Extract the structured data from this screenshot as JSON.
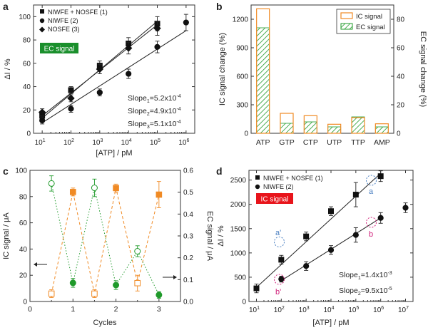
{
  "colors": {
    "orange": "#f08a24",
    "green": "#1f9a2a",
    "red_box": "#e8141b",
    "green_box": "#1a8f2c",
    "blue_letter": "#4a7fc1",
    "magenta_letter": "#d0207a",
    "axis": "#333333"
  },
  "chart_data": [
    {
      "panel": "a",
      "type": "scatter",
      "xscale": "log",
      "xlim": [
        5,
        2000000
      ],
      "ylim": [
        0,
        110
      ],
      "xticks": [
        10,
        100,
        1000,
        10000,
        100000,
        1000000
      ],
      "xtick_labels": [
        [
          "10",
          "1"
        ],
        [
          "10",
          "2"
        ],
        [
          "10",
          "3"
        ],
        [
          "10",
          "4"
        ],
        [
          "10",
          "5"
        ],
        [
          "10",
          "6"
        ]
      ],
      "yticks": [
        0,
        20,
        40,
        60,
        80,
        100
      ],
      "xlabel": "[ATP] / pM",
      "ylabel": "ΔI / %",
      "badge": "EC signal",
      "legend": [
        "NIWFE + NOSFE (1)",
        "NIWFE (2)",
        "NOSFE (3)"
      ],
      "series": [
        {
          "name": "NIWFE + NOSFE (1)",
          "marker": "square",
          "x": [
            10,
            100,
            1000,
            10000,
            100000
          ],
          "y": [
            15,
            37,
            58,
            77,
            94
          ],
          "err": [
            3,
            3,
            4,
            5,
            6
          ]
        },
        {
          "name": "NIWFE (2)",
          "marker": "circle",
          "x": [
            10,
            100,
            1000,
            10000,
            100000,
            1000000
          ],
          "y": [
            11,
            21,
            35,
            51,
            74,
            95
          ],
          "err": [
            3,
            3,
            3,
            4,
            5,
            7
          ]
        },
        {
          "name": "NOSFE (3)",
          "marker": "diamond",
          "x": [
            10,
            100,
            1000,
            10000,
            100000
          ],
          "y": [
            18,
            30,
            55,
            73,
            90
          ],
          "err": [
            3,
            3,
            4,
            5,
            6
          ]
        }
      ],
      "fits": [
        {
          "x": [
            10,
            100000
          ],
          "y": [
            13,
            96
          ]
        },
        {
          "x": [
            10,
            1000000
          ],
          "y": [
            9,
            88
          ]
        },
        {
          "x": [
            10,
            100000
          ],
          "y": [
            15,
            93
          ]
        }
      ],
      "slopes": [
        {
          "label": "Slope",
          "sub": "1",
          "value": "=5.2x10",
          "exp": "-4"
        },
        {
          "label": "Slope",
          "sub": "2",
          "value": "=4.9x10",
          "exp": "-4"
        },
        {
          "label": "Slope",
          "sub": "3",
          "value": "=5.1x10",
          "exp": "-4"
        }
      ]
    },
    {
      "panel": "b",
      "type": "bar",
      "categories": [
        "ATP",
        "GTP",
        "CTP",
        "UTP",
        "TTP",
        "AMP"
      ],
      "series": [
        {
          "name": "IC signal",
          "values": [
            1310,
            210,
            185,
            95,
            165,
            100
          ]
        },
        {
          "name": "EC signal",
          "values": [
            74,
            7,
            8,
            4.5,
            11.5,
            4.5
          ]
        }
      ],
      "ylim_left": [
        0,
        1350
      ],
      "yticks_left": [
        0,
        300,
        600,
        900,
        1200
      ],
      "ylim_right": [
        0,
        90
      ],
      "yticks_right": [
        0,
        20,
        40,
        60,
        80
      ],
      "ylabel_left": "IC signal change (%)",
      "ylabel_right": "EC signal change (%)",
      "legend": [
        "IC signal",
        "EC signal"
      ]
    },
    {
      "panel": "c",
      "type": "line",
      "xlim": [
        0,
        3.5
      ],
      "xticks": [
        0,
        1,
        2,
        3
      ],
      "ylim_left": [
        0,
        100
      ],
      "yticks_left": [
        0,
        20,
        40,
        60,
        80,
        100
      ],
      "ylim_right": [
        0,
        0.6
      ],
      "yticks_right": [
        0.0,
        0.1,
        0.2,
        0.3,
        0.4,
        0.5,
        0.6
      ],
      "xlabel": "Cycles",
      "ylabel_left": "IC signal / μA",
      "ylabel_right": "EC signal / μA",
      "series": [
        {
          "axis": "left",
          "x": [
            0.5,
            1,
            1.5,
            2,
            2.5,
            3
          ],
          "y": [
            6,
            83.5,
            6,
            86.5,
            14,
            81.5
          ],
          "err": [
            3,
            3,
            3,
            3,
            6,
            10
          ],
          "filled": [
            false,
            true,
            false,
            true,
            false,
            true
          ]
        },
        {
          "axis": "right",
          "x": [
            0.5,
            1,
            1.5,
            2,
            2.5,
            3
          ],
          "y": [
            0.54,
            0.085,
            0.52,
            0.075,
            0.23,
            0.03
          ],
          "err": [
            0.035,
            0.02,
            0.04,
            0.02,
            0.025,
            0.015
          ],
          "filled": [
            false,
            true,
            false,
            true,
            false,
            true
          ]
        }
      ]
    },
    {
      "panel": "d",
      "type": "scatter",
      "xscale": "log",
      "xlim": [
        5,
        20000000
      ],
      "ylim": [
        0,
        2700
      ],
      "xticks": [
        10,
        100,
        1000,
        10000,
        100000,
        1000000,
        10000000
      ],
      "xtick_labels": [
        [
          "10",
          "1"
        ],
        [
          "10",
          "2"
        ],
        [
          "10",
          "3"
        ],
        [
          "10",
          "4"
        ],
        [
          "10",
          "5"
        ],
        [
          "10",
          "6"
        ],
        [
          "10",
          "7"
        ]
      ],
      "yticks": [
        0,
        500,
        1000,
        1500,
        2000,
        2500
      ],
      "xlabel": "[ATP] / pM",
      "ylabel": "ΔI / %",
      "badge": "IC signal",
      "legend": [
        "NIWFE + NOSFE (1)",
        "NIWFE (2)"
      ],
      "series": [
        {
          "name": "NIWFE + NOSFE (1)",
          "marker": "square",
          "x": [
            10,
            100,
            1000,
            10000,
            100000,
            1000000
          ],
          "y": [
            270,
            860,
            1340,
            1860,
            2200,
            2580
          ],
          "err": [
            90,
            90,
            90,
            90,
            250,
            110
          ]
        },
        {
          "name": "NIWFE (2)",
          "marker": "circle",
          "x": [
            100,
            1000,
            10000,
            100000,
            1000000,
            10000000
          ],
          "y": [
            460,
            730,
            1060,
            1370,
            1720,
            1930
          ],
          "err": [
            60,
            90,
            90,
            150,
            110,
            100
          ]
        }
      ],
      "fits": [
        {
          "x": [
            10,
            1000000
          ],
          "y": [
            290,
            2640
          ]
        },
        {
          "x": [
            100,
            1000000
          ],
          "y": [
            430,
            1720
          ]
        }
      ],
      "point_labels": [
        "a'",
        "a",
        "b'",
        "b"
      ],
      "slopes": [
        {
          "label": "Slope",
          "sub": "1",
          "value": "=1.4x10",
          "exp": "-3"
        },
        {
          "label": "Slope",
          "sub": "2",
          "value": "=9.5x10",
          "exp": "-5"
        }
      ]
    }
  ]
}
